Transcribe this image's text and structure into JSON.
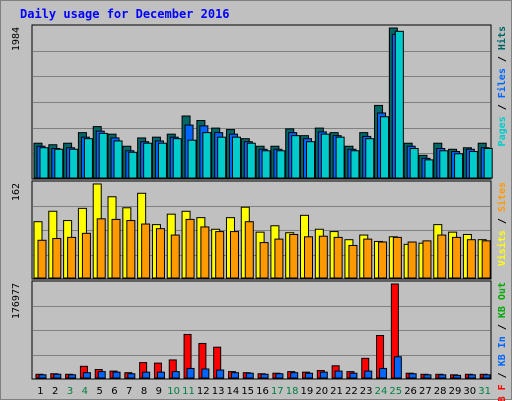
{
  "title": "Daily usage for December 2016",
  "colors": {
    "background": "#c0c0c0",
    "panel": "#c0c0c0",
    "grid": "#808080",
    "title": "#0000ff",
    "pages": "#00cccc",
    "files": "#0066ff",
    "hits": "#006666",
    "visits": "#ffff00",
    "sites": "#ff9900",
    "kbin": "#0066ff",
    "kbout": "#00aa00",
    "kbf": "#ff0000",
    "separator": "#000000",
    "weekday": "#000000",
    "weekend": "#008040"
  },
  "chart_data": [
    {
      "type": "bar",
      "panel": "hits",
      "y_tick_label": "1984",
      "ylim": [
        0,
        1984
      ],
      "categories": [
        "1",
        "2",
        "3",
        "4",
        "5",
        "6",
        "7",
        "8",
        "9",
        "10",
        "11",
        "12",
        "13",
        "14",
        "15",
        "16",
        "17",
        "18",
        "19",
        "20",
        "21",
        "22",
        "23",
        "24",
        "25",
        "26",
        "27",
        "28",
        "29",
        "30",
        "31"
      ],
      "weekend_days": [
        "3",
        "4",
        "10",
        "11",
        "17",
        "18",
        "24",
        "25",
        "31"
      ],
      "series": [
        {
          "name": "Hits",
          "color": "#006666",
          "values": [
            460,
            440,
            460,
            600,
            680,
            580,
            420,
            530,
            540,
            580,
            820,
            760,
            660,
            640,
            520,
            420,
            420,
            650,
            560,
            660,
            600,
            420,
            600,
            960,
            1984,
            460,
            300,
            460,
            380,
            400,
            460
          ]
        },
        {
          "name": "Files",
          "color": "#0066ff",
          "values": [
            420,
            390,
            400,
            540,
            620,
            530,
            360,
            480,
            490,
            540,
            700,
            690,
            600,
            580,
            480,
            380,
            380,
            600,
            520,
            610,
            560,
            380,
            550,
            860,
            1900,
            420,
            260,
            390,
            350,
            380,
            400
          ]
        },
        {
          "name": "Pages",
          "color": "#00cccc",
          "values": [
            400,
            380,
            380,
            520,
            590,
            490,
            340,
            460,
            460,
            520,
            500,
            600,
            540,
            540,
            460,
            360,
            360,
            560,
            480,
            580,
            540,
            360,
            520,
            810,
            1940,
            390,
            240,
            360,
            320,
            350,
            390
          ]
        }
      ]
    },
    {
      "type": "bar",
      "panel": "visits",
      "y_tick_label": "162",
      "ylim": [
        0,
        162
      ],
      "categories": [
        "1",
        "2",
        "3",
        "4",
        "5",
        "6",
        "7",
        "8",
        "9",
        "10",
        "11",
        "12",
        "13",
        "14",
        "15",
        "16",
        "17",
        "18",
        "19",
        "20",
        "21",
        "22",
        "23",
        "24",
        "25",
        "26",
        "27",
        "28",
        "29",
        "30",
        "31"
      ],
      "series": [
        {
          "name": "Visits",
          "color": "#ffff00",
          "values": [
            97,
            115,
            99,
            120,
            162,
            140,
            121,
            146,
            92,
            110,
            115,
            104,
            84,
            104,
            122,
            79,
            90,
            78,
            108,
            84,
            80,
            66,
            74,
            63,
            71,
            58,
            60,
            92,
            79,
            75,
            66
          ]
        },
        {
          "name": "Sites",
          "color": "#ff9900",
          "values": [
            65,
            68,
            70,
            77,
            102,
            101,
            99,
            93,
            85,
            74,
            101,
            88,
            80,
            80,
            97,
            61,
            67,
            75,
            71,
            72,
            70,
            56,
            67,
            62,
            70,
            62,
            64,
            74,
            70,
            66,
            64
          ]
        }
      ]
    },
    {
      "type": "bar",
      "panel": "kbytes",
      "y_tick_label": "176977",
      "ylim": [
        0,
        176977
      ],
      "categories": [
        "1",
        "2",
        "3",
        "4",
        "5",
        "6",
        "7",
        "8",
        "9",
        "10",
        "11",
        "12",
        "13",
        "14",
        "15",
        "16",
        "17",
        "18",
        "19",
        "20",
        "21",
        "22",
        "23",
        "24",
        "25",
        "26",
        "27",
        "28",
        "29",
        "30",
        "31"
      ],
      "series": [
        {
          "name": "KB F",
          "color": "#ff0000",
          "values": [
            7000,
            8000,
            7000,
            22000,
            16000,
            13000,
            10000,
            29000,
            28000,
            34000,
            82000,
            65000,
            58000,
            12000,
            10000,
            8000,
            9000,
            12000,
            11000,
            14000,
            23000,
            12000,
            37000,
            80000,
            176977,
            9000,
            7000,
            7000,
            6000,
            7000,
            7000
          ]
        },
        {
          "name": "KB In",
          "color": "#0066ff",
          "values": [
            6000,
            7000,
            6000,
            10000,
            12000,
            11000,
            8000,
            11000,
            11000,
            12000,
            18000,
            17000,
            15000,
            10000,
            9000,
            7000,
            8000,
            10000,
            9000,
            11000,
            13000,
            9000,
            13000,
            18000,
            40000,
            8000,
            6000,
            6000,
            5000,
            6000,
            6000
          ]
        },
        {
          "name": "KB Out",
          "color": "#00aa00",
          "values": [
            0,
            0,
            0,
            0,
            0,
            0,
            0,
            0,
            0,
            0,
            0,
            0,
            0,
            0,
            0,
            0,
            0,
            0,
            0,
            0,
            0,
            0,
            0,
            0,
            0,
            0,
            0,
            0,
            0,
            0,
            0
          ]
        }
      ]
    }
  ],
  "right_labels": [
    [
      {
        "text": "Pages",
        "color": "#00cccc"
      },
      {
        "text": " / ",
        "color": "#000000"
      },
      {
        "text": "Files",
        "color": "#0066ff"
      },
      {
        "text": " / ",
        "color": "#000000"
      },
      {
        "text": "Hits",
        "color": "#006666"
      }
    ],
    [
      {
        "text": "Visits",
        "color": "#ffff00"
      },
      {
        "text": " / ",
        "color": "#000000"
      },
      {
        "text": "Sites",
        "color": "#ff9900"
      }
    ],
    [
      {
        "text": "KB F",
        "color": "#ff0000"
      },
      {
        "text": " / ",
        "color": "#000000"
      },
      {
        "text": "KB In",
        "color": "#0066ff"
      },
      {
        "text": " / ",
        "color": "#000000"
      },
      {
        "text": "KB Out",
        "color": "#00aa00"
      }
    ]
  ]
}
